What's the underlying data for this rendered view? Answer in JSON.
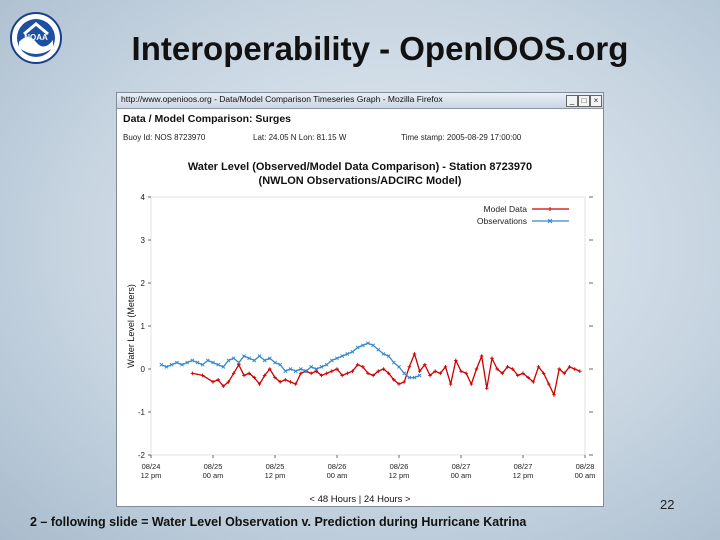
{
  "slide": {
    "title": "Interoperability - OpenIOOS.org",
    "footer": "2 – following slide = Water Level Observation v. Prediction during Hurricane Katrina",
    "page_number": "22",
    "logo_text": "NOAA"
  },
  "window": {
    "title": "http://www.openioos.org - Data/Model Comparison Timeseries Graph - Mozilla Firefox",
    "btn_min": "_",
    "btn_max": "□",
    "btn_close": "×"
  },
  "page": {
    "heading": "Data / Model Comparison: Surges",
    "buoy": "Buoy Id: NOS 8723970",
    "latlon": "Lat: 24.05 N Lon: 81.15 W",
    "timestamp": "Time stamp: 2005-08-29 17:00:00"
  },
  "chart_data": {
    "type": "line",
    "title": "Water Level (Observed/Model Data Comparison) - Station 8723970",
    "subtitle": "(NWLON Observations/ADCIRC Model)",
    "ylabel": "Water Level (Meters)",
    "xlabel": "< 48 Hours | 24 Hours >",
    "ylim": [
      -2,
      4
    ],
    "xlim": [
      0,
      84
    ],
    "y_ticks": [
      "4",
      "3",
      "2",
      "1",
      "0",
      "-1",
      "-2"
    ],
    "x_ticks": [
      {
        "x": 0,
        "line1": "08/24",
        "line2": "12 pm"
      },
      {
        "x": 12,
        "line1": "08/25",
        "line2": "00 am"
      },
      {
        "x": 24,
        "line1": "08/25",
        "line2": "12 pm"
      },
      {
        "x": 36,
        "line1": "08/26",
        "line2": "00 am"
      },
      {
        "x": 48,
        "line1": "08/26",
        "line2": "12 pm"
      },
      {
        "x": 60,
        "line1": "08/27",
        "line2": "00 am"
      },
      {
        "x": 72,
        "line1": "08/27",
        "line2": "12 pm"
      },
      {
        "x": 84,
        "line1": "08/28",
        "line2": "00 am"
      }
    ],
    "series": [
      {
        "name": "Model Data",
        "color": "#cc0000",
        "x": [
          8,
          10,
          12,
          13,
          14,
          15,
          16,
          17,
          18,
          19,
          20,
          21,
          22,
          23,
          24,
          25,
          26,
          27,
          28,
          29,
          30,
          31,
          32,
          33,
          34,
          35,
          36,
          37,
          38,
          39,
          40,
          41,
          42,
          43,
          44,
          45,
          46,
          47,
          48,
          49,
          50,
          51,
          52,
          53,
          54,
          55,
          56,
          57,
          58,
          59,
          60,
          61,
          62,
          63,
          64,
          65,
          66,
          67,
          68,
          69,
          70,
          71,
          72,
          73,
          74,
          75,
          76,
          77,
          78,
          79,
          80,
          81,
          82,
          83
        ],
        "values": [
          -0.1,
          -0.15,
          -0.3,
          -0.25,
          -0.4,
          -0.3,
          -0.1,
          0.1,
          -0.15,
          -0.1,
          -0.2,
          -0.35,
          -0.15,
          0.0,
          -0.2,
          -0.3,
          -0.25,
          -0.3,
          -0.35,
          -0.1,
          -0.05,
          -0.1,
          -0.05,
          -0.15,
          -0.1,
          -0.05,
          0.0,
          -0.15,
          -0.1,
          -0.05,
          0.1,
          0.05,
          -0.1,
          -0.15,
          -0.05,
          0.0,
          -0.1,
          -0.25,
          -0.35,
          -0.3,
          0.05,
          0.35,
          -0.05,
          0.1,
          -0.15,
          -0.05,
          -0.1,
          0.05,
          -0.35,
          0.2,
          -0.05,
          -0.1,
          -0.35,
          0.0,
          0.3,
          -0.45,
          0.25,
          0.0,
          -0.1,
          0.05,
          0.0,
          -0.15,
          -0.1,
          -0.2,
          -0.3,
          0.05,
          -0.1,
          -0.35,
          -0.6,
          0.0,
          -0.1,
          0.05,
          0.0,
          -0.05
        ]
      },
      {
        "name": "Observations",
        "color": "#3388cc",
        "x": [
          2,
          3,
          4,
          5,
          6,
          7,
          8,
          9,
          10,
          11,
          12,
          13,
          14,
          15,
          16,
          17,
          18,
          19,
          20,
          21,
          22,
          23,
          24,
          25,
          26,
          27,
          28,
          29,
          30,
          31,
          32,
          33,
          34,
          35,
          36,
          37,
          38,
          39,
          40,
          41,
          42,
          43,
          44,
          45,
          46,
          47,
          48,
          49,
          50,
          51,
          52
        ],
        "values": [
          0.1,
          0.05,
          0.1,
          0.15,
          0.1,
          0.15,
          0.2,
          0.15,
          0.1,
          0.2,
          0.15,
          0.1,
          0.05,
          0.2,
          0.25,
          0.15,
          0.3,
          0.25,
          0.2,
          0.3,
          0.2,
          0.25,
          0.15,
          0.1,
          -0.05,
          0.0,
          -0.05,
          0.0,
          -0.05,
          0.05,
          0.0,
          0.05,
          0.1,
          0.2,
          0.25,
          0.3,
          0.35,
          0.4,
          0.5,
          0.55,
          0.6,
          0.55,
          0.45,
          0.35,
          0.3,
          0.15,
          0.05,
          -0.1,
          -0.2,
          -0.2,
          -0.15
        ]
      }
    ],
    "legend": "top-right"
  }
}
